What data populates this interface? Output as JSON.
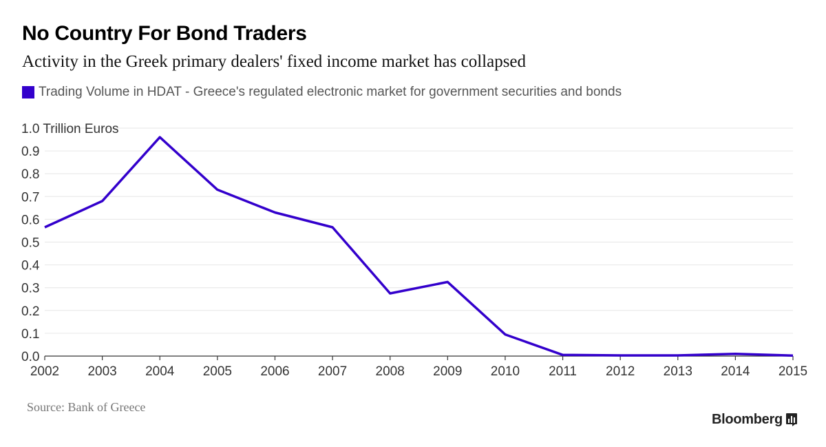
{
  "header": {
    "title": "No Country For Bond Traders",
    "subtitle": "Activity in the Greek primary dealers' fixed income market has collapsed"
  },
  "legend": {
    "label": "Trading Volume in HDAT - Greece's regulated electronic market for government securities and bonds"
  },
  "footer": {
    "source": "Source: Bank of Greece",
    "brand": "Bloomberg"
  },
  "colors": {
    "series": "#3300cc",
    "gridline": "#e6e6e6",
    "axis": "#333333",
    "tick_text": "#333333"
  },
  "chart_data": {
    "type": "line",
    "x": [
      "2002",
      "2003",
      "2004",
      "2005",
      "2006",
      "2007",
      "2008",
      "2009",
      "2010",
      "2011",
      "2012",
      "2013",
      "2014",
      "2015"
    ],
    "series": [
      {
        "values": [
          0.565,
          0.68,
          0.96,
          0.73,
          0.63,
          0.565,
          0.275,
          0.325,
          0.095,
          0.005,
          0.003,
          0.003,
          0.01,
          0.002
        ]
      }
    ],
    "ylim": [
      0,
      1.0
    ],
    "y_ticks": [
      0.0,
      0.1,
      0.2,
      0.3,
      0.4,
      0.5,
      0.6,
      0.7,
      0.8,
      0.9,
      1.0
    ],
    "y_tick_labels": [
      "0.0",
      "0.1",
      "0.2",
      "0.3",
      "0.4",
      "0.5",
      "0.6",
      "0.7",
      "0.8",
      "0.9",
      "1.0 Trillion Euros"
    ],
    "grid": true,
    "legend_position": "top-left"
  }
}
